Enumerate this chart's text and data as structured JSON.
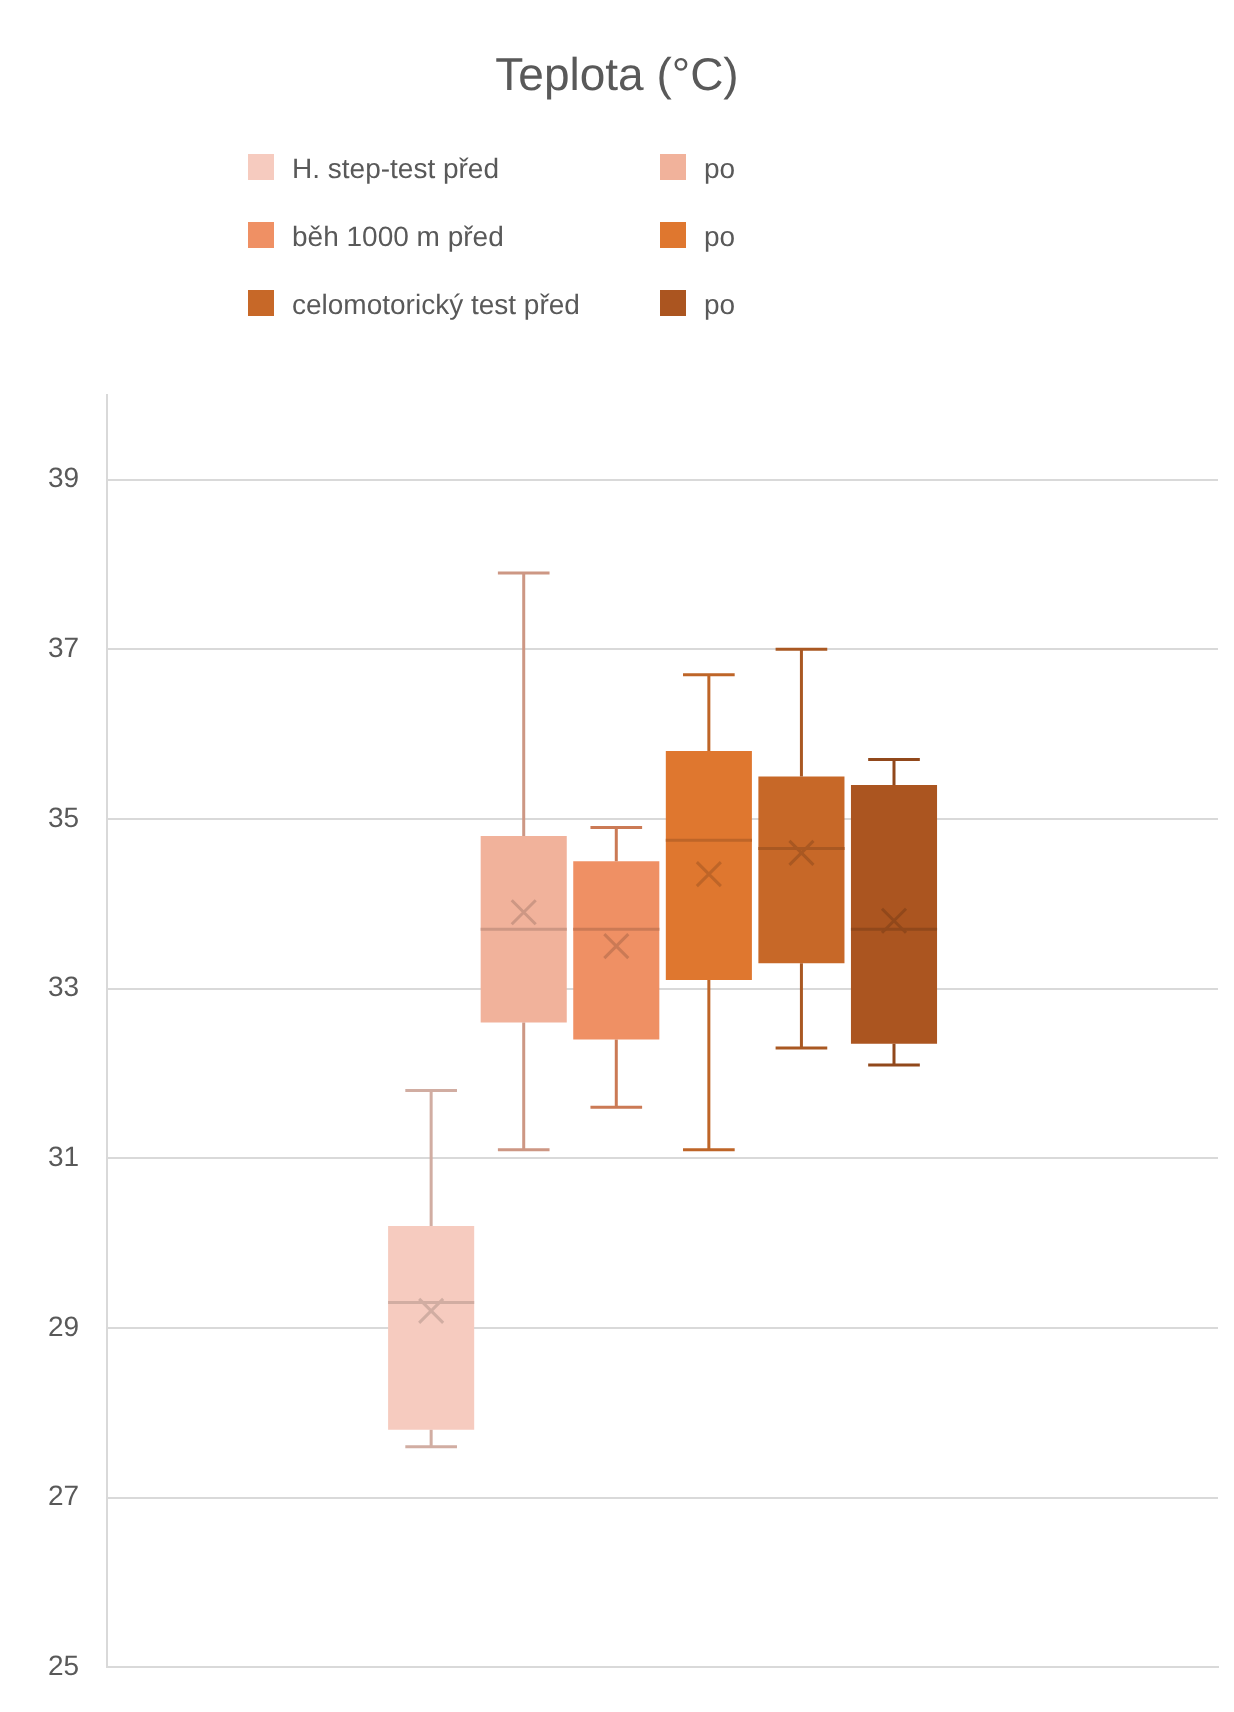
{
  "chart_data": {
    "type": "box",
    "title": "Teplota (°C)",
    "categories": [
      null
    ],
    "series": [
      {
        "name": "H. step-test před",
        "color": "#f6cbbf",
        "boxes": [
          {
            "low": 27.6,
            "q1": 27.8,
            "median": 29.3,
            "q3": 30.2,
            "high": 31.8,
            "mean": 29.2
          }
        ]
      },
      {
        "name": "po",
        "color": "#f1b29b",
        "boxes": [
          {
            "low": 31.1,
            "q1": 32.6,
            "median": 33.7,
            "q3": 34.8,
            "high": 37.9,
            "mean": 33.9
          }
        ]
      },
      {
        "name": "běh 1000 m před",
        "color": "#ef9064",
        "boxes": [
          {
            "low": 31.6,
            "q1": 32.4,
            "median": 33.7,
            "q3": 34.5,
            "high": 34.9,
            "mean": 33.5
          }
        ]
      },
      {
        "name": "po",
        "color": "#df772f",
        "boxes": [
          {
            "low": 31.1,
            "q1": 33.1,
            "median": 34.75,
            "q3": 35.8,
            "high": 36.7,
            "mean": 34.35
          }
        ]
      },
      {
        "name": "celomotorický test před",
        "color": "#c76828",
        "boxes": [
          {
            "low": 32.3,
            "q1": 33.3,
            "median": 34.65,
            "q3": 35.5,
            "high": 37.0,
            "mean": 34.6
          }
        ]
      },
      {
        "name": "po",
        "color": "#ab5520",
        "boxes": [
          {
            "low": 32.1,
            "q1": 32.35,
            "median": 33.7,
            "q3": 35.4,
            "high": 35.7,
            "mean": 33.8
          }
        ]
      }
    ],
    "ylim": [
      25,
      40
    ],
    "yticks": [
      25,
      27,
      29,
      31,
      33,
      35,
      37,
      39
    ],
    "grid": "y",
    "legend": "top",
    "tick_labels": "y",
    "marker": "cross"
  }
}
